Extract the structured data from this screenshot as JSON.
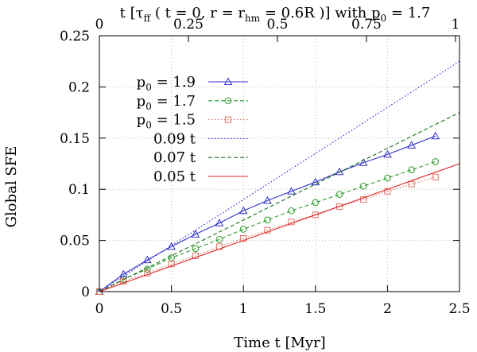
{
  "chart_data": {
    "type": "line",
    "xlabel": "Time t [Myr]",
    "ylabel": "Global SFE",
    "top_axis_title": {
      "base": "t [τ",
      "sub1": "ff",
      "mid1": " ( t = 0, r = r",
      "sub2": "hm",
      "mid2": " = 0.6R )] with p",
      "sub3": "0",
      "end": " = 1.7"
    },
    "xlim": [
      0,
      2.5
    ],
    "ylim": [
      0,
      0.25
    ],
    "x_ticks": [
      "0",
      "0.5",
      "1",
      "1.5",
      "2",
      "2.5"
    ],
    "y_ticks": [
      "0",
      "0.05",
      "0.1",
      "0.15",
      "0.2",
      "0.25"
    ],
    "top_ticks": [
      "0",
      "0.25",
      "0.5",
      "0.75",
      "1"
    ],
    "top_tick_positions_myr": [
      0,
      0.618,
      1.236,
      1.854,
      2.472
    ],
    "grid": true,
    "series": [
      {
        "name": "p0 = 1.9",
        "label_base": "p",
        "label_sub": "0",
        "label_rest": " = 1.9",
        "style": "solid",
        "marker": "triangle",
        "color": "#3333cc",
        "x": [
          0,
          0.167,
          0.333,
          0.5,
          0.667,
          0.833,
          1.0,
          1.167,
          1.333,
          1.5,
          1.667,
          1.833,
          2.0,
          2.167,
          2.333
        ],
        "values": [
          0,
          0.017,
          0.031,
          0.044,
          0.056,
          0.067,
          0.079,
          0.089,
          0.098,
          0.107,
          0.117,
          0.126,
          0.134,
          0.143,
          0.152
        ]
      },
      {
        "name": "p0 = 1.7",
        "label_base": "p",
        "label_sub": "0",
        "label_rest": " = 1.7",
        "style": "dashed",
        "marker": "circle",
        "color": "#2a9a2a",
        "x": [
          0,
          0.167,
          0.333,
          0.5,
          0.667,
          0.833,
          1.0,
          1.167,
          1.333,
          1.5,
          1.667,
          1.833,
          2.0,
          2.167,
          2.333
        ],
        "values": [
          0,
          0.012,
          0.022,
          0.033,
          0.042,
          0.051,
          0.061,
          0.07,
          0.079,
          0.087,
          0.095,
          0.103,
          0.111,
          0.119,
          0.127
        ]
      },
      {
        "name": "p0 = 1.5",
        "label_base": "p",
        "label_sub": "0",
        "label_rest": " = 1.5",
        "style": "dotted",
        "marker": "square",
        "color": "#e07060",
        "x": [
          0,
          0.167,
          0.333,
          0.5,
          0.667,
          0.833,
          1.0,
          1.167,
          1.333,
          1.5,
          1.667,
          1.833,
          2.0,
          2.167,
          2.333
        ],
        "values": [
          0,
          0.01,
          0.018,
          0.027,
          0.035,
          0.044,
          0.052,
          0.06,
          0.068,
          0.075,
          0.083,
          0.09,
          0.098,
          0.105,
          0.112
        ]
      },
      {
        "name": "0.09 t",
        "label_base": "0.09 t",
        "label_sub": "",
        "label_rest": "",
        "style": "dotted",
        "marker": "none",
        "color": "#2222dd",
        "x": [
          0,
          2.5
        ],
        "values": [
          0,
          0.225
        ]
      },
      {
        "name": "0.07 t",
        "label_base": "0.07 t",
        "label_sub": "",
        "label_rest": "",
        "style": "dashed",
        "marker": "none",
        "color": "#1a6e1a",
        "x": [
          0,
          2.5
        ],
        "values": [
          0,
          0.175
        ]
      },
      {
        "name": "0.05 t",
        "label_base": "0.05 t",
        "label_sub": "",
        "label_rest": "",
        "style": "solid",
        "marker": "none",
        "color": "#e02020",
        "x": [
          0,
          2.5
        ],
        "values": [
          0,
          0.125
        ]
      }
    ],
    "legend_position": "top-left"
  }
}
